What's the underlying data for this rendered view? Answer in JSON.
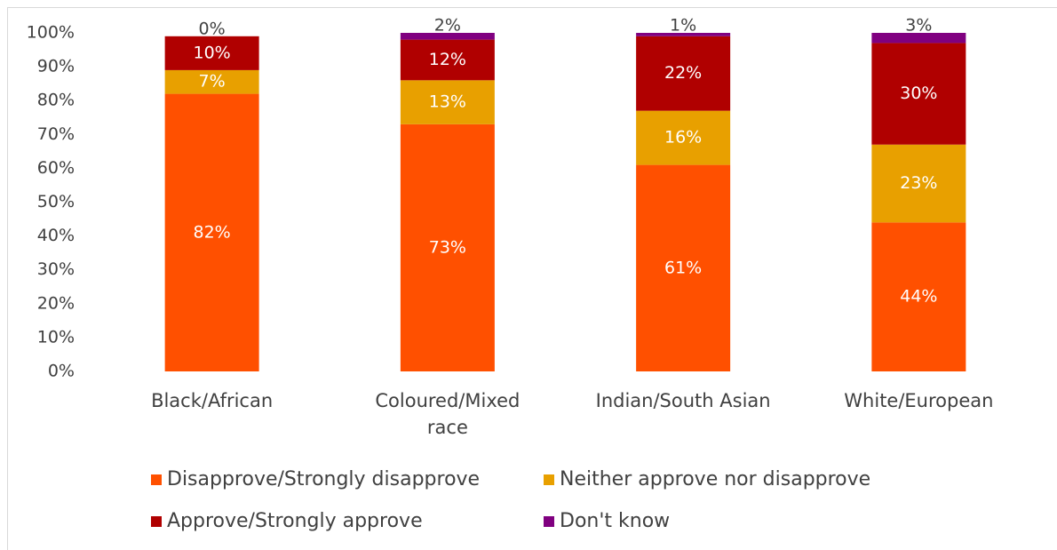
{
  "chart_data": {
    "type": "stacked_bar",
    "categories": [
      "Black/African",
      "Coloured/Mixed race",
      "Indian/South Asian",
      "White/European"
    ],
    "series": [
      {
        "name": "Disapprove/Strongly disapprove",
        "color": "#ff5000",
        "values": [
          82,
          73,
          61,
          44
        ],
        "value_labels": [
          "82%",
          "73%",
          "61%",
          "44%"
        ]
      },
      {
        "name": "Neither approve nor disapprove",
        "color": "#e8a000",
        "values": [
          7,
          13,
          16,
          23
        ],
        "value_labels": [
          "7%",
          "13%",
          "16%",
          "23%"
        ]
      },
      {
        "name": "Approve/Strongly approve",
        "color": "#b00000",
        "values": [
          10,
          12,
          22,
          30
        ],
        "value_labels": [
          "10%",
          "12%",
          "22%",
          "30%"
        ]
      },
      {
        "name": "Don't know",
        "color": "#800080",
        "values": [
          0,
          2,
          1,
          3
        ],
        "value_labels": [
          "0%",
          "2%",
          "1%",
          "3%"
        ]
      }
    ],
    "ylim": [
      0,
      100
    ],
    "yticks": [
      {
        "value": 0,
        "label": "0%"
      },
      {
        "value": 10,
        "label": "10%"
      },
      {
        "value": 20,
        "label": "20%"
      },
      {
        "value": 30,
        "label": "30%"
      },
      {
        "value": 40,
        "label": "40%"
      },
      {
        "value": 50,
        "label": "50%"
      },
      {
        "value": 60,
        "label": "60%"
      },
      {
        "value": 70,
        "label": "70%"
      },
      {
        "value": 80,
        "label": "80%"
      },
      {
        "value": 90,
        "label": "90%"
      },
      {
        "value": 100,
        "label": "100%"
      }
    ],
    "grid": false,
    "legend": "bottom"
  }
}
